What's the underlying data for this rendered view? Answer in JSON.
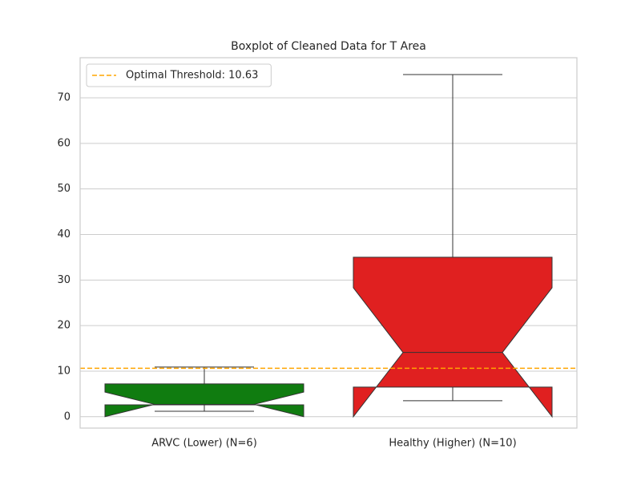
{
  "chart_data": {
    "type": "boxplot",
    "title": "Boxplot of Cleaned Data for T Area",
    "categories": [
      "ARVC (Lower) (N=6)",
      "Healthy (Higher) (N=10)"
    ],
    "boxes": [
      {
        "color": "#107c10",
        "whisker_low": 1.2,
        "q1": 2.6,
        "median": 2.7,
        "q3": 7.2,
        "whisker_high": 10.9,
        "notch_low": 0.0,
        "notch_high": 5.4
      },
      {
        "color": "#e02020",
        "whisker_low": 3.5,
        "q1": 6.5,
        "median": 14.1,
        "q3": 35.0,
        "whisker_high": 75.1,
        "notch_low": 0.0,
        "notch_high": 28.3
      }
    ],
    "threshold": {
      "value": 10.63,
      "label": "Optimal Threshold: 10.63",
      "color": "orange"
    },
    "ylim": [
      -2.5,
      78.8
    ],
    "yticks": [
      0,
      10,
      20,
      30,
      40,
      50,
      60,
      70
    ],
    "grid": true,
    "legend": "upper left"
  }
}
